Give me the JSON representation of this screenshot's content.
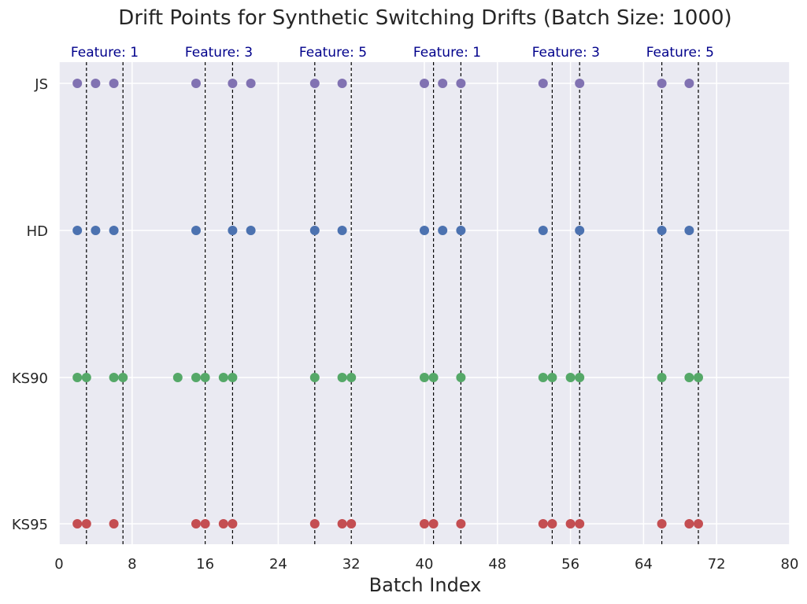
{
  "chart_data": {
    "type": "scatter",
    "title": "Drift Points for Synthetic Switching Drifts (Batch Size: 1000)",
    "xlabel": "Batch Index",
    "ylabel": "",
    "xlim": [
      0,
      80
    ],
    "xticks": [
      0,
      8,
      16,
      24,
      32,
      40,
      48,
      56,
      64,
      72,
      80
    ],
    "grid": true,
    "categories": [
      "KS95",
      "KS90",
      "HD",
      "JS"
    ],
    "series": [
      {
        "name": "KS95",
        "color": "#c44e52",
        "x": [
          2,
          3,
          6,
          15,
          16,
          18,
          19,
          28,
          31,
          32,
          40,
          41,
          44,
          53,
          54,
          56,
          57,
          66,
          69,
          70
        ]
      },
      {
        "name": "KS90",
        "color": "#55a868",
        "x": [
          2,
          3,
          6,
          7,
          13,
          15,
          16,
          18,
          19,
          28,
          31,
          32,
          40,
          41,
          44,
          53,
          54,
          56,
          57,
          66,
          69,
          70
        ]
      },
      {
        "name": "HD",
        "color": "#4c72b0",
        "x": [
          2,
          4,
          6,
          15,
          19,
          21,
          28,
          31,
          40,
          42,
          44,
          53,
          57,
          66,
          69
        ]
      },
      {
        "name": "JS",
        "color": "#8172b2",
        "x": [
          2,
          4,
          6,
          15,
          19,
          21,
          28,
          31,
          40,
          42,
          44,
          53,
          57,
          66,
          69
        ]
      }
    ],
    "drift_lines": [
      3,
      7,
      16,
      19,
      28,
      32,
      41,
      44,
      54,
      57,
      66,
      70
    ],
    "annotations": [
      {
        "text": "Feature: 1",
        "x": 5
      },
      {
        "text": "Feature: 3",
        "x": 17.5
      },
      {
        "text": "Feature: 5",
        "x": 30
      },
      {
        "text": "Feature: 1",
        "x": 42.5
      },
      {
        "text": "Feature: 3",
        "x": 55.5
      },
      {
        "text": "Feature: 5",
        "x": 68
      }
    ],
    "annotation_color": "#00008b"
  }
}
